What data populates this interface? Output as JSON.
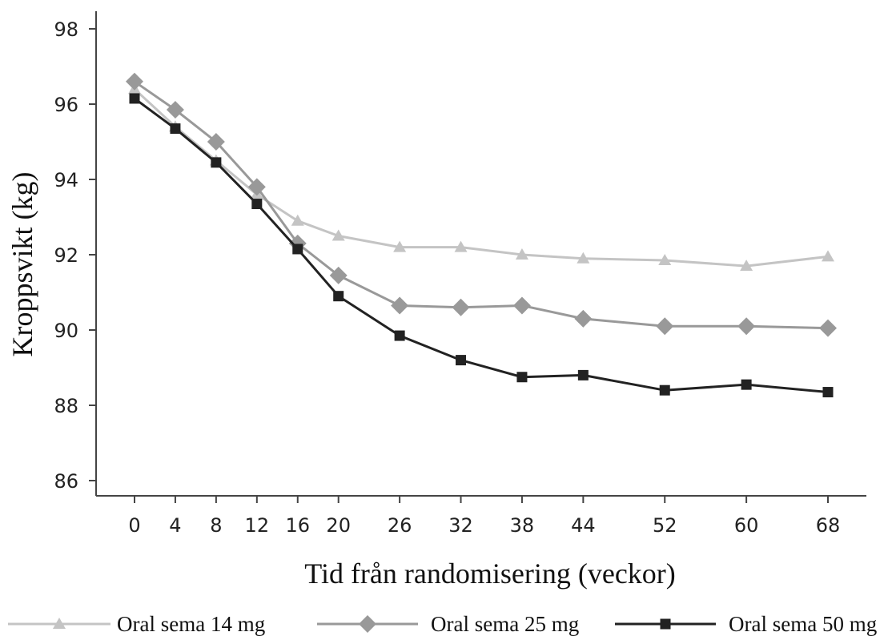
{
  "chart_data": {
    "type": "line",
    "title": "",
    "xlabel": "Tid från randomisering (veckor)",
    "ylabel": "Kroppsvikt (kg)",
    "x": [
      0,
      4,
      8,
      12,
      16,
      20,
      26,
      32,
      38,
      44,
      52,
      60,
      68
    ],
    "x_ticks": [
      "0",
      "4",
      "8",
      "12",
      "16",
      "20",
      "26",
      "32",
      "38",
      "44",
      "52",
      "60",
      "68"
    ],
    "y_ticks": [
      "86",
      "88",
      "90",
      "92",
      "94",
      "96",
      "98"
    ],
    "ylim": [
      85.6,
      98.4
    ],
    "grid": false,
    "legend_position": "bottom",
    "series": [
      {
        "name": "Oral sema 14 mg",
        "marker": "triangle",
        "color": "#c4c4c4",
        "values": [
          96.4,
          95.4,
          94.5,
          93.6,
          92.9,
          92.5,
          92.2,
          92.2,
          92.0,
          91.9,
          91.85,
          91.7,
          91.95
        ]
      },
      {
        "name": "Oral sema 25 mg",
        "marker": "diamond",
        "color": "#999999",
        "values": [
          96.6,
          95.85,
          95.0,
          93.8,
          92.3,
          91.45,
          90.65,
          90.6,
          90.65,
          90.3,
          90.1,
          90.1,
          90.05
        ]
      },
      {
        "name": "Oral sema 50 mg",
        "marker": "square",
        "color": "#222222",
        "values": [
          96.15,
          95.35,
          94.45,
          93.35,
          92.15,
          90.9,
          89.85,
          89.2,
          88.75,
          88.8,
          88.4,
          88.55,
          88.35
        ]
      }
    ]
  }
}
